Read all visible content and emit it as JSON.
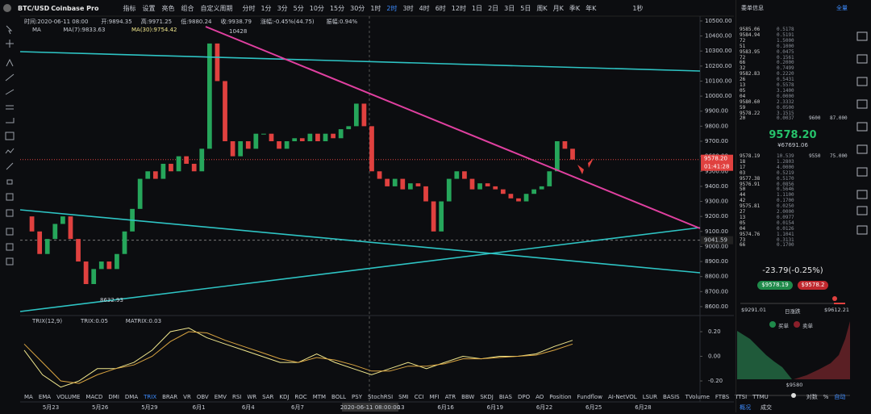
{
  "toolbar": {
    "symbol": "BTC/USD",
    "exchange": "Coinbase Pro",
    "buttons": [
      "指标",
      "设置",
      "亮色",
      "组合",
      "自定义周期"
    ],
    "periods": [
      "分时",
      "1分",
      "3分",
      "5分",
      "10分",
      "15分",
      "30分",
      "1时",
      "2时",
      "3时",
      "4时",
      "6时",
      "12时",
      "1日",
      "2日",
      "3日",
      "5日",
      "周K",
      "月K",
      "季K",
      "年K"
    ],
    "active_period": 8,
    "seconds": "1秒"
  },
  "info_line": [
    "时间:2020-06-11 08:00",
    "开:9894.35",
    "高:9971.25",
    "低:9880.24",
    "收:9938.79",
    "涨幅:-0.45%(44.75)",
    "振幅:0.94%"
  ],
  "ma_legend": [
    "MA",
    "MA(7):9833.63",
    "MA(30):9754.42"
  ],
  "price_chart": {
    "type": "candlestick",
    "closes": [
      9200,
      9100,
      8950,
      9050,
      9150,
      9200,
      9050,
      8900,
      8750,
      8850,
      8900,
      8850,
      8950,
      9100,
      9250,
      9450,
      9500,
      9450,
      9550,
      9500,
      9600,
      9550,
      9500,
      9650,
      10350,
      10100,
      9700,
      9600,
      9700,
      9650,
      9750,
      9750,
      9700,
      9650,
      9700,
      9720,
      9700,
      9750,
      9700,
      9750,
      9720,
      9780,
      9800,
      9950,
      9800,
      9500,
      9450,
      9400,
      9450,
      9380,
      9420,
      9400,
      9300,
      9100,
      9300,
      9450,
      9500,
      9450,
      9380,
      9420,
      9400,
      9380,
      9350,
      9320,
      9300,
      9350,
      9380,
      9400,
      9500,
      9700,
      9650,
      9578.2
    ],
    "ylim": [
      8546,
      10532
    ],
    "yticks": [
      {
        "value": 10500,
        "label": "10500.00"
      },
      {
        "value": 10400,
        "label": "10400.00"
      },
      {
        "value": 10300,
        "label": "10300.00"
      },
      {
        "value": 10200,
        "label": "10200.00"
      },
      {
        "value": 10100,
        "label": "10100.00"
      },
      {
        "value": 10000,
        "label": "10000.00"
      },
      {
        "value": 9900,
        "label": "9900.00"
      },
      {
        "value": 9800,
        "label": "9800.00"
      },
      {
        "value": 9700,
        "label": "9700.00"
      },
      {
        "value": 9600,
        "label": "9600.00"
      },
      {
        "value": 9500,
        "label": "9500.00"
      },
      {
        "value": 9400,
        "label": "9400.00"
      },
      {
        "value": 9300,
        "label": "9300.00"
      },
      {
        "value": 9200,
        "label": "9200.00"
      },
      {
        "value": 9100,
        "label": "9100.00"
      },
      {
        "value": 9000,
        "label": "9000.00"
      },
      {
        "value": 8900,
        "label": "8900.00"
      },
      {
        "value": 8800,
        "label": "8800.00"
      },
      {
        "value": 8700,
        "label": "8700.00"
      },
      {
        "value": 8600,
        "label": "8600.00"
      }
    ],
    "last_price": {
      "value": 9578.2,
      "label": "9578.20"
    },
    "countdown": "01:41:28",
    "marker_price": {
      "value": 9041.59,
      "label": "9041.59"
    },
    "high_note": "10428",
    "low_note": "8632.93",
    "up_color": "#26a65b",
    "down_color": "#e0413f"
  },
  "trix_panel": {
    "type": "line",
    "legend": [
      "TRIX(12,9)",
      "TRIX:0.05",
      "MATRIX:0.03"
    ],
    "ylim": [
      -0.285,
      0.318
    ],
    "yticks": [
      {
        "value": 0.2,
        "label": "0.20"
      },
      {
        "value": 0,
        "label": "0.00"
      },
      {
        "value": -0.2,
        "label": "-0.20"
      }
    ],
    "series": [
      {
        "name": "TRIX",
        "color": "#f0e68c",
        "values": [
          0.05,
          -0.15,
          -0.25,
          -0.2,
          -0.1,
          -0.1,
          -0.05,
          0.05,
          0.2,
          0.23,
          0.15,
          0.1,
          0.05,
          0.0,
          -0.05,
          -0.05,
          0.02,
          -0.05,
          -0.1,
          -0.15,
          -0.1,
          -0.05,
          -0.1,
          -0.05,
          0.0,
          -0.02,
          0.0,
          0.0,
          0.02,
          0.08,
          0.13
        ]
      },
      {
        "name": "MATRIX",
        "color": "#d9a441",
        "values": [
          0.1,
          -0.05,
          -0.2,
          -0.22,
          -0.15,
          -0.1,
          -0.07,
          0.0,
          0.12,
          0.2,
          0.19,
          0.13,
          0.08,
          0.03,
          -0.02,
          -0.05,
          -0.01,
          -0.03,
          -0.07,
          -0.12,
          -0.12,
          -0.08,
          -0.08,
          -0.06,
          -0.02,
          -0.02,
          -0.01,
          0.0,
          0.01,
          0.05,
          0.1
        ]
      }
    ]
  },
  "indicators": [
    "MA",
    "EMA",
    "VOLUME",
    "MACD",
    "DMI",
    "DMA",
    "TRIX",
    "BRAR",
    "VR",
    "OBV",
    "EMV",
    "RSI",
    "WR",
    "SAR",
    "KDJ",
    "ROC",
    "MTM",
    "BOLL",
    "PSY",
    "StochRSI",
    "SMI",
    "CCI",
    "MFI",
    "ATR",
    "BBW",
    "SKDJ",
    "BIAS",
    "DPO",
    "AO",
    "Position",
    "Fundflow",
    "AI-NetVOL",
    "LSUR",
    "BASIS",
    "TVolume",
    "FTBS",
    "TTSI",
    "TTMU"
  ],
  "axis_options": [
    "对数",
    "%",
    "自动"
  ],
  "dates": [
    "5月23",
    "5月26",
    "5月29",
    "6月1",
    "6月4",
    "6月7",
    "6月10",
    "6月13",
    "6月16",
    "6月19",
    "6月22",
    "6月25",
    "6月28"
  ],
  "date_cursor": "2020-06-11 08:00:00",
  "order_panel": {
    "title": "委单信息",
    "mode": "全量",
    "asks": [
      [
        "9585.06",
        "0.5178"
      ],
      [
        "9584.94",
        "0.5191"
      ],
      [
        "72",
        "1.5000"
      ],
      [
        "51",
        "0.1000"
      ],
      [
        "9583.95",
        "0.0475"
      ],
      [
        "72",
        "0.1561"
      ],
      [
        "66",
        "0.2000"
      ],
      [
        "32",
        "0.7499"
      ],
      [
        "9582.83",
        "0.2220"
      ],
      [
        "26",
        "0.5431"
      ],
      [
        "13",
        "0.5578"
      ],
      [
        "05",
        "3.1400"
      ],
      [
        "04",
        "0.0000"
      ],
      [
        "9580.60",
        "2.3332"
      ],
      [
        "59",
        "0.0500"
      ],
      [
        "9578.22",
        "3.1515"
      ],
      [
        "20",
        "0.0037"
      ]
    ],
    "ask_side": [
      "9600",
      "87.000"
    ],
    "price": "9578.20",
    "price_cny": "¥67691.06",
    "bids": [
      [
        "9578.19",
        "10.539"
      ],
      [
        "18",
        "1.2803"
      ],
      [
        "17",
        "4.0000"
      ],
      [
        "03",
        "0.5219"
      ],
      [
        "9577.38",
        "0.5170"
      ],
      [
        "9576.91",
        "0.0856"
      ],
      [
        "50",
        "0.5646"
      ],
      [
        "44",
        "1.1100"
      ],
      [
        "42",
        "0.1700"
      ],
      [
        "9575.81",
        "0.0250"
      ],
      [
        "27",
        "2.0000"
      ],
      [
        "13",
        "0.0977"
      ],
      [
        "05",
        "0.0154"
      ],
      [
        "04",
        "0.0126"
      ],
      [
        "9574.76",
        "1.1041"
      ],
      [
        "73",
        "0.3131"
      ],
      [
        "66",
        "0.1700"
      ]
    ],
    "bid_side": [
      "9550",
      "75.000"
    ],
    "change": "-23.79(-0.25%)",
    "bid_button": "$9578.19",
    "ask_button": "$9578.2",
    "day_low": "$9291.01",
    "range_label": "日涨跌",
    "day_high": "$9612.21",
    "legend": [
      "买单",
      "卖单"
    ],
    "depth_mid": "$9580",
    "tabs": [
      "概况",
      "成交"
    ]
  }
}
